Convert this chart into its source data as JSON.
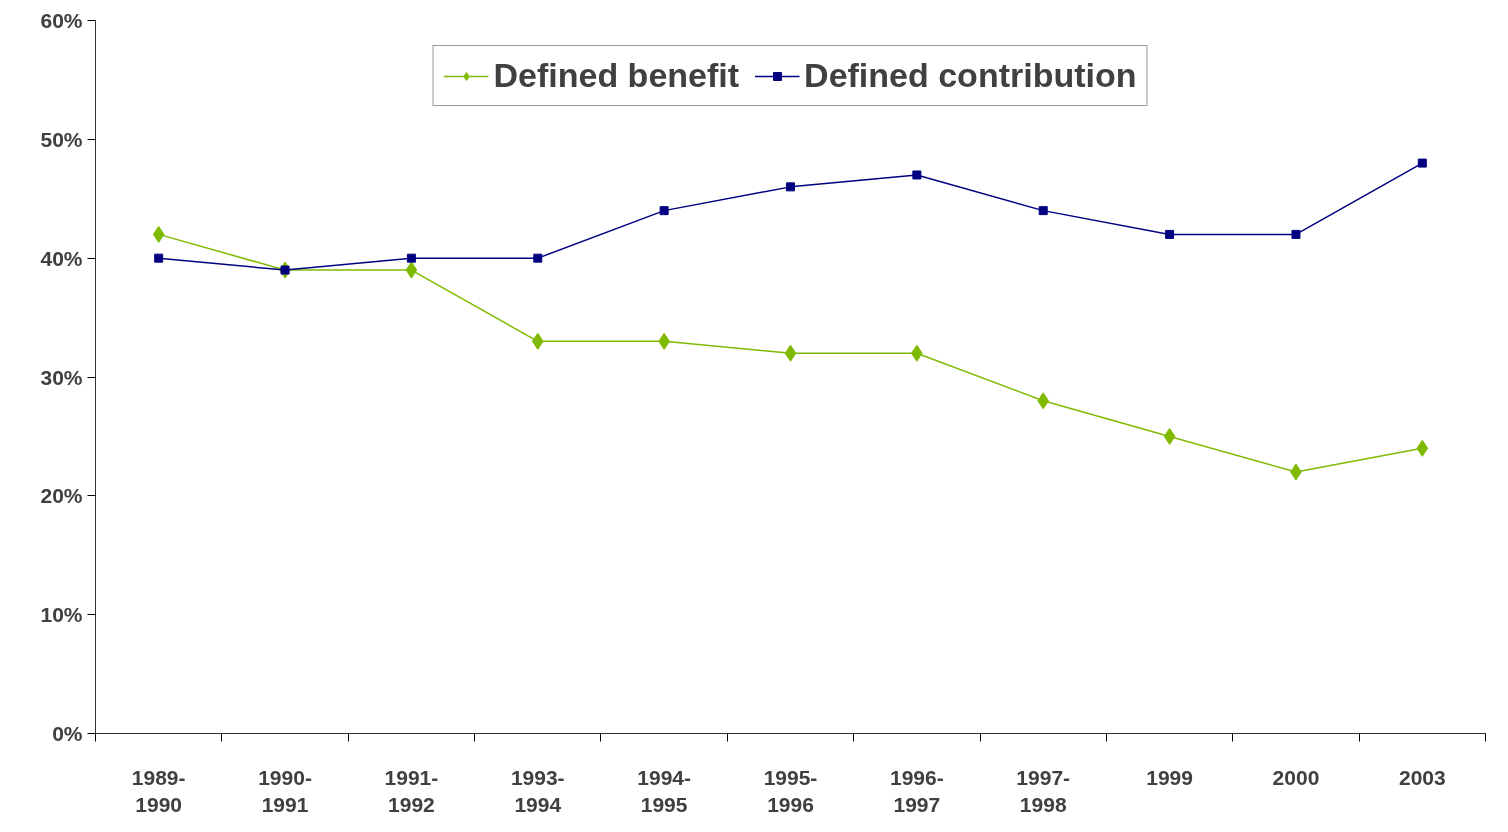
{
  "chart_data": {
    "type": "line",
    "categories": [
      "1989-\n1990",
      "1990-\n1991",
      "1991-\n1992",
      "1993-\n1994",
      "1994-\n1995",
      "1995-\n1996",
      "1996-\n1997",
      "1997-\n1998",
      "1999",
      "2000",
      "2003"
    ],
    "series": [
      {
        "name": "Defined benefit",
        "color": "#7fba00",
        "marker": "diamond",
        "values": [
          42,
          39,
          39,
          33,
          33,
          32,
          32,
          28,
          25,
          22,
          24
        ]
      },
      {
        "name": "Defined contribution",
        "color": "#000080",
        "marker": "square",
        "values": [
          40,
          39,
          40,
          40,
          44,
          46,
          47,
          44,
          42,
          42,
          48
        ]
      }
    ],
    "ylim": [
      0,
      60
    ],
    "yticks": [
      {
        "value": 0,
        "label": "0%"
      },
      {
        "value": 10,
        "label": "10%"
      },
      {
        "value": 20,
        "label": "20%"
      },
      {
        "value": 30,
        "label": "30%"
      },
      {
        "value": 40,
        "label": "40%"
      },
      {
        "value": 50,
        "label": "50%"
      },
      {
        "value": 60,
        "label": "60%"
      }
    ],
    "grid": false,
    "legend": "top",
    "line_style": "solid"
  }
}
